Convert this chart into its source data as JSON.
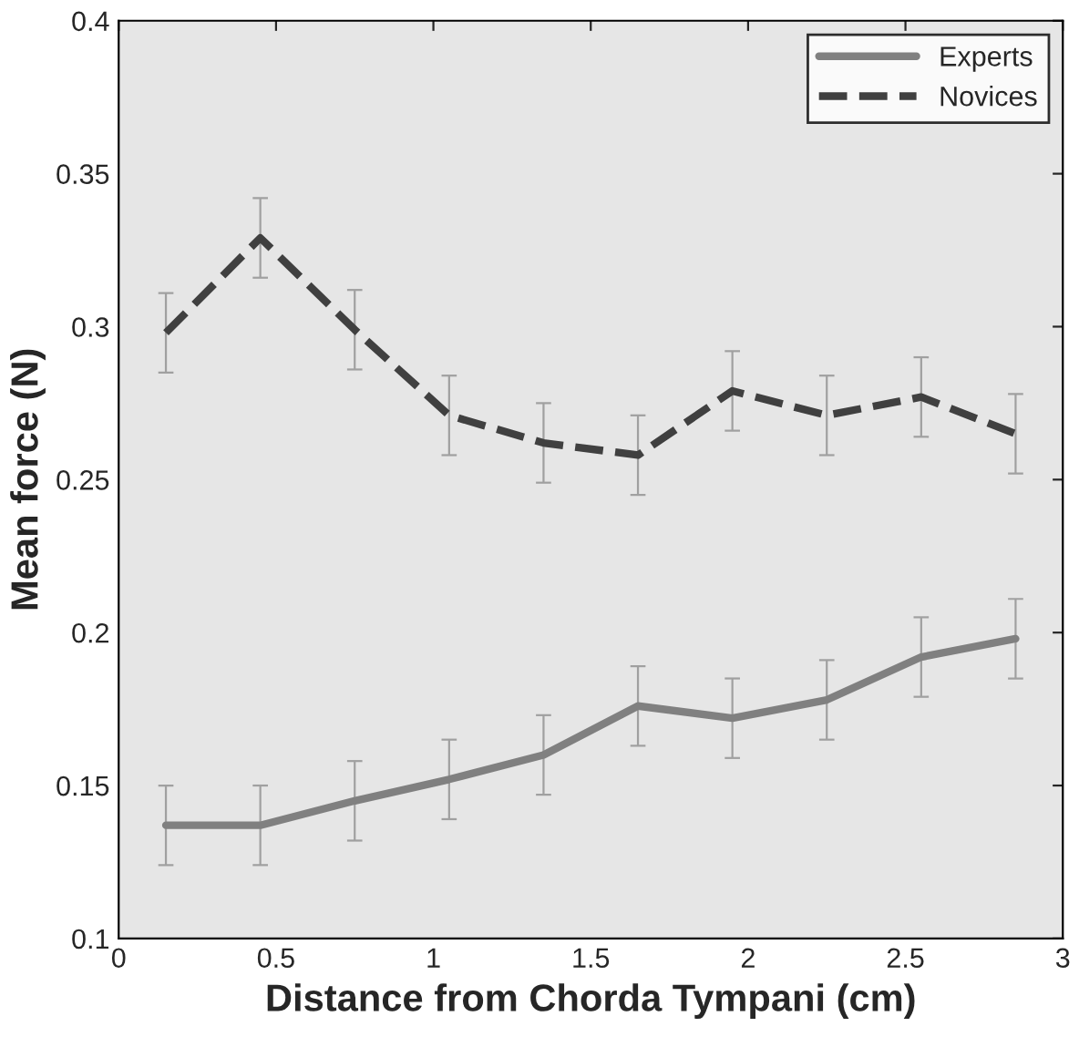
{
  "chart_data": {
    "type": "line",
    "xlabel": "Distance from Chorda Tympani (cm)",
    "ylabel": "Mean force (N)",
    "x": [
      0.15,
      0.45,
      0.75,
      1.05,
      1.35,
      1.65,
      1.95,
      2.25,
      2.55,
      2.85
    ],
    "series": [
      {
        "name": "Experts",
        "color": "#808080",
        "line_style": "solid",
        "values": [
          0.137,
          0.137,
          0.145,
          0.152,
          0.16,
          0.176,
          0.172,
          0.178,
          0.192,
          0.198
        ],
        "errors": [
          0.013,
          0.013,
          0.013,
          0.013,
          0.013,
          0.013,
          0.013,
          0.013,
          0.013,
          0.013
        ]
      },
      {
        "name": "Novices",
        "color": "#404040",
        "line_style": "dashed",
        "values": [
          0.298,
          0.329,
          0.299,
          0.271,
          0.262,
          0.258,
          0.279,
          0.271,
          0.277,
          0.265
        ],
        "errors": [
          0.013,
          0.013,
          0.013,
          0.013,
          0.013,
          0.013,
          0.013,
          0.013,
          0.013,
          0.013
        ]
      }
    ],
    "xlim": [
      0,
      3
    ],
    "xticks": [
      0,
      0.5,
      1,
      1.5,
      2,
      2.5,
      3
    ],
    "ylim": [
      0.1,
      0.4
    ],
    "yticks": [
      0.1,
      0.15,
      0.2,
      0.25,
      0.3,
      0.35,
      0.4
    ],
    "grid": false,
    "legend": "top right",
    "marker": "none"
  }
}
